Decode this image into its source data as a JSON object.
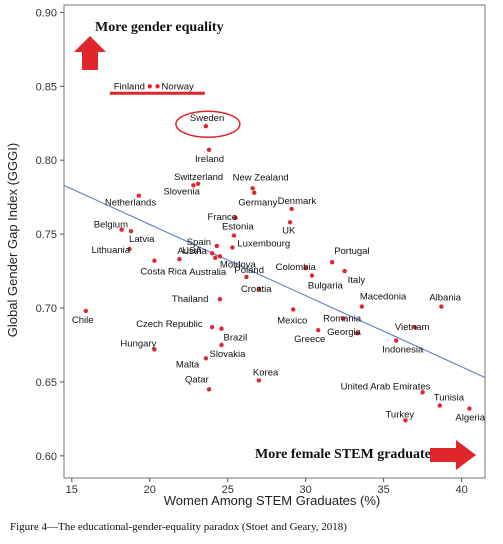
{
  "chart_data": {
    "type": "scatter",
    "xlabel": "Women Among STEM Graduates (%)",
    "ylabel": "Global Gender Gap Index (GGGI)",
    "xlim": [
      14.5,
      41.5
    ],
    "ylim": [
      0.585,
      0.905
    ],
    "x_ticks": [
      15,
      20,
      25,
      30,
      35,
      40
    ],
    "y_ticks": [
      0.6,
      0.65,
      0.7,
      0.75,
      0.8,
      0.85,
      0.9
    ],
    "grid": false,
    "point_color": "#e0262b",
    "trend_color": "#5b7fc4",
    "trend_line": {
      "x": [
        14.5,
        41.5
      ],
      "y": [
        0.783,
        0.653
      ]
    },
    "points": [
      {
        "label": "Finland",
        "x": 20.0,
        "y": 0.85
      },
      {
        "label": "Norway",
        "x": 20.5,
        "y": 0.85
      },
      {
        "label": "Sweden",
        "x": 23.6,
        "y": 0.823
      },
      {
        "label": "Ireland",
        "x": 23.8,
        "y": 0.807
      },
      {
        "label": "Switzerland",
        "x": 23.1,
        "y": 0.784
      },
      {
        "label": "Slovenia",
        "x": 22.8,
        "y": 0.783
      },
      {
        "label": "New Zealand",
        "x": 26.6,
        "y": 0.781
      },
      {
        "label": "Germany",
        "x": 26.7,
        "y": 0.778
      },
      {
        "label": "Netherlands",
        "x": 19.3,
        "y": 0.776
      },
      {
        "label": "Denmark",
        "x": 29.1,
        "y": 0.767
      },
      {
        "label": "France",
        "x": 25.5,
        "y": 0.761
      },
      {
        "label": "Belgium",
        "x": 18.2,
        "y": 0.753
      },
      {
        "label": "Estonia",
        "x": 25.4,
        "y": 0.749
      },
      {
        "label": "Latvia",
        "x": 18.8,
        "y": 0.752
      },
      {
        "label": "UK",
        "x": 29.0,
        "y": 0.758
      },
      {
        "label": "Spain",
        "x": 24.3,
        "y": 0.742
      },
      {
        "label": "Luxembourg",
        "x": 25.3,
        "y": 0.741
      },
      {
        "label": "USA",
        "x": 24.0,
        "y": 0.737
      },
      {
        "label": "Portugal",
        "x": 31.7,
        "y": 0.731
      },
      {
        "label": "Lithuania",
        "x": 18.7,
        "y": 0.74
      },
      {
        "label": "Austria",
        "x": 21.9,
        "y": 0.733
      },
      {
        "label": "Moldova",
        "x": 24.5,
        "y": 0.735
      },
      {
        "label": "Colombia",
        "x": 30.0,
        "y": 0.727
      },
      {
        "label": "Costa Rica",
        "x": 20.3,
        "y": 0.732
      },
      {
        "label": "Australia",
        "x": 24.2,
        "y": 0.734
      },
      {
        "label": "Italy",
        "x": 32.5,
        "y": 0.725
      },
      {
        "label": "Poland",
        "x": 26.2,
        "y": 0.721
      },
      {
        "label": "Bulgaria",
        "x": 30.4,
        "y": 0.722
      },
      {
        "label": "Croatia",
        "x": 27.0,
        "y": 0.713
      },
      {
        "label": "Macedonia",
        "x": 33.6,
        "y": 0.701
      },
      {
        "label": "Albania",
        "x": 38.7,
        "y": 0.701
      },
      {
        "label": "Thailand",
        "x": 24.5,
        "y": 0.706
      },
      {
        "label": "Romania",
        "x": 32.4,
        "y": 0.693
      },
      {
        "label": "Mexico",
        "x": 29.2,
        "y": 0.699
      },
      {
        "label": "Chile",
        "x": 15.9,
        "y": 0.698
      },
      {
        "label": "Czech Republic",
        "x": 24.0,
        "y": 0.687
      },
      {
        "label": "Vietnam",
        "x": 37.0,
        "y": 0.687
      },
      {
        "label": "Greece",
        "x": 30.8,
        "y": 0.685
      },
      {
        "label": "Brazil",
        "x": 24.6,
        "y": 0.686
      },
      {
        "label": "Georgia",
        "x": 33.3,
        "y": 0.683
      },
      {
        "label": "Indonesia",
        "x": 35.8,
        "y": 0.678
      },
      {
        "label": "Hungary",
        "x": 20.3,
        "y": 0.672
      },
      {
        "label": "Slovakia",
        "x": 24.6,
        "y": 0.675
      },
      {
        "label": "Malta",
        "x": 23.6,
        "y": 0.666
      },
      {
        "label": "Korea",
        "x": 27.0,
        "y": 0.651
      },
      {
        "label": "Qatar",
        "x": 23.8,
        "y": 0.645
      },
      {
        "label": "United Arab Emirates",
        "x": 37.5,
        "y": 0.643
      },
      {
        "label": "Tunisia",
        "x": 38.6,
        "y": 0.634
      },
      {
        "label": "Turkey",
        "x": 36.4,
        "y": 0.624
      },
      {
        "label": "Algeria",
        "x": 40.5,
        "y": 0.632
      }
    ],
    "annotations": {
      "top": "More gender equality",
      "bottom": "More female STEM graduates"
    }
  },
  "caption": "Figure 4—The educational-gender-equality paradox (Stoet and Geary, 2018)"
}
